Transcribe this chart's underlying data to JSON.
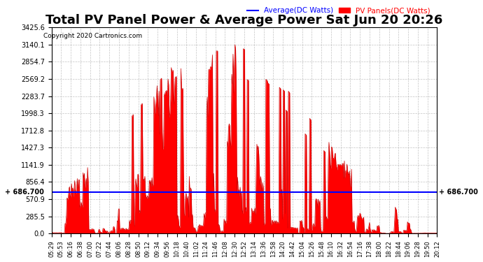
{
  "title": "Total PV Panel Power & Average Power Sat Jun 20 20:26",
  "copyright": "Copyright 2020 Cartronics.com",
  "legend_avg": "Average(DC Watts)",
  "legend_pv": "PV Panels(DC Watts)",
  "avg_line_y": 686.7,
  "avg_label": "686.700",
  "ylim": [
    0,
    3425.6
  ],
  "yticks": [
    0.0,
    285.5,
    570.9,
    856.4,
    1141.9,
    1427.3,
    1712.8,
    1998.3,
    2283.7,
    2569.2,
    2854.7,
    3140.1,
    3425.6
  ],
  "background_color": "#ffffff",
  "fill_color": "#ff0000",
  "line_color": "#cc0000",
  "avg_color": "#0000ff",
  "grid_color": "#aaaaaa",
  "title_fontsize": 13,
  "xtick_labels": [
    "05:29",
    "05:53",
    "06:16",
    "06:38",
    "07:00",
    "07:22",
    "07:44",
    "08:06",
    "08:28",
    "08:50",
    "09:12",
    "09:34",
    "09:56",
    "10:18",
    "10:40",
    "11:02",
    "11:24",
    "11:46",
    "12:08",
    "12:30",
    "12:52",
    "13:14",
    "13:36",
    "13:58",
    "14:20",
    "14:42",
    "15:04",
    "15:26",
    "15:48",
    "16:10",
    "16:32",
    "16:54",
    "17:16",
    "17:38",
    "18:00",
    "18:22",
    "18:44",
    "19:06",
    "19:28",
    "19:50",
    "20:12"
  ],
  "num_points": 600
}
